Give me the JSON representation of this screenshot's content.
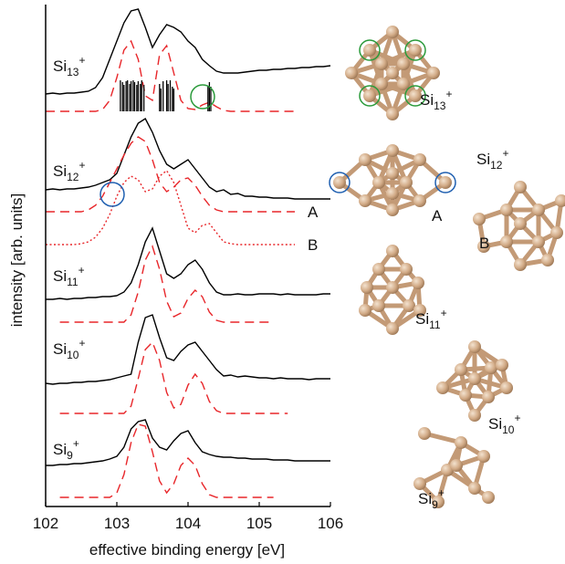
{
  "chart_data": {
    "type": "line",
    "xlabel": "effective binding energy [eV]",
    "ylabel": "intensity [arb. units]",
    "xlim": [
      102,
      106
    ],
    "xticks": [
      102,
      103,
      104,
      105,
      106
    ],
    "ylim": [
      0,
      550
    ],
    "x": [
      102.0,
      102.1,
      102.2,
      102.3,
      102.4,
      102.5,
      102.6,
      102.7,
      102.8,
      102.9,
      103.0,
      103.1,
      103.2,
      103.3,
      103.4,
      103.5,
      103.6,
      103.7,
      103.8,
      103.9,
      104.0,
      104.1,
      104.2,
      104.3,
      104.4,
      104.5,
      104.6,
      104.7,
      104.8,
      104.9,
      105.0,
      105.1,
      105.2,
      105.3,
      105.4,
      105.5,
      105.6,
      105.7,
      105.8,
      105.9,
      106.0
    ],
    "trace_labels": [
      {
        "element": "Si",
        "size": "13",
        "charge": "+"
      },
      {
        "element": "Si",
        "size": "12",
        "charge": "+"
      },
      {
        "element": "Si",
        "size": "11",
        "charge": "+"
      },
      {
        "element": "Si",
        "size": "10",
        "charge": "+"
      },
      {
        "element": "Si",
        "size": "9",
        "charge": "+"
      }
    ],
    "series": [
      {
        "color": "#000000",
        "style": "solid",
        "values": [
          452,
          453,
          452,
          453,
          453,
          454,
          455,
          459,
          470,
          490,
          510,
          530,
          543,
          545,
          525,
          503,
          517,
          528,
          525,
          520,
          510,
          503,
          490,
          483,
          477,
          475,
          475,
          475,
          476,
          477,
          478,
          478,
          479,
          479,
          480,
          480,
          481,
          481,
          482,
          482,
          483
        ]
      },
      {
        "color": "#e8262a",
        "style": "dashed",
        "values": [
          433,
          433,
          433,
          433,
          433,
          433,
          433,
          433,
          435,
          445,
          470,
          500,
          510,
          490,
          450,
          445,
          495,
          505,
          475,
          445,
          436,
          435,
          440,
          443,
          438,
          434,
          433,
          433,
          433,
          433,
          433,
          433,
          433,
          433,
          433,
          433,
          null,
          null,
          null,
          null,
          null
        ]
      },
      {
        "color": "#000000",
        "style": "solid",
        "values": [
          347,
          348,
          347,
          348,
          348,
          349,
          350,
          352,
          355,
          358,
          365,
          385,
          405,
          420,
          425,
          410,
          390,
          375,
          370,
          375,
          380,
          370,
          360,
          350,
          345,
          347,
          342,
          343,
          340,
          340,
          339,
          339,
          338,
          338,
          338,
          337,
          337,
          337,
          337,
          337,
          337
        ]
      },
      {
        "name": "A",
        "color": "#e8262a",
        "style": "dashed",
        "values": [
          323,
          323,
          323,
          323,
          323,
          323,
          325,
          330,
          340,
          355,
          370,
          385,
          398,
          405,
          400,
          380,
          355,
          345,
          350,
          358,
          360,
          352,
          340,
          330,
          325,
          323,
          323,
          323,
          323,
          323,
          323,
          323,
          323,
          323,
          323,
          323,
          null,
          null,
          null,
          null,
          null
        ]
      },
      {
        "name": "B",
        "color": "#e8262a",
        "style": "dotted",
        "values": [
          287,
          287,
          287,
          287,
          287,
          288,
          290,
          295,
          305,
          320,
          340,
          355,
          362,
          358,
          345,
          348,
          362,
          368,
          355,
          330,
          305,
          300,
          308,
          310,
          300,
          290,
          288,
          287,
          287,
          287,
          287,
          287,
          287,
          287,
          287,
          287,
          null,
          null,
          null,
          null,
          null
        ]
      },
      {
        "color": "#000000",
        "style": "solid",
        "values": [
          227,
          227,
          228,
          227,
          228,
          228,
          229,
          229,
          230,
          230,
          231,
          235,
          245,
          265,
          290,
          305,
          280,
          255,
          250,
          255,
          265,
          270,
          260,
          245,
          235,
          232,
          232,
          233,
          232,
          232,
          233,
          233,
          233,
          232,
          233,
          232,
          232,
          232,
          232,
          233,
          233
        ]
      },
      {
        "color": "#e8262a",
        "style": "dashed",
        "values": [
          null,
          null,
          202,
          202,
          202,
          202,
          202,
          202,
          202,
          202,
          202,
          202,
          210,
          235,
          270,
          285,
          260,
          225,
          208,
          212,
          228,
          237,
          230,
          213,
          204,
          202,
          202,
          202,
          202,
          202,
          202,
          202,
          202,
          null,
          null,
          null,
          null,
          null,
          null,
          null,
          null
        ]
      },
      {
        "color": "#000000",
        "style": "solid",
        "values": [
          135,
          134,
          135,
          135,
          136,
          136,
          137,
          137,
          138,
          139,
          141,
          143,
          145,
          180,
          207,
          210,
          185,
          163,
          160,
          170,
          177,
          180,
          170,
          160,
          150,
          143,
          144,
          142,
          143,
          142,
          141,
          141,
          140,
          141,
          140,
          140,
          140,
          139,
          140,
          140,
          140
        ]
      },
      {
        "color": "#e8262a",
        "style": "dashed",
        "values": [
          null,
          null,
          102,
          102,
          102,
          102,
          102,
          102,
          102,
          102,
          102,
          102,
          110,
          140,
          172,
          180,
          160,
          125,
          108,
          112,
          133,
          145,
          135,
          115,
          105,
          102,
          102,
          102,
          102,
          102,
          102,
          102,
          102,
          102,
          102,
          null,
          null,
          null,
          null,
          null,
          null
        ]
      },
      {
        "color": "#000000",
        "style": "solid",
        "values": [
          45,
          45,
          46,
          46,
          47,
          47,
          48,
          49,
          50,
          52,
          55,
          65,
          85,
          93,
          95,
          75,
          65,
          62,
          72,
          80,
          83,
          70,
          60,
          57,
          55,
          54,
          54,
          53,
          53,
          52,
          52,
          52,
          51,
          51,
          51,
          50,
          50,
          50,
          50,
          50,
          50
        ]
      },
      {
        "color": "#e8262a",
        "style": "dashed",
        "values": [
          null,
          null,
          10,
          10,
          10,
          10,
          10,
          10,
          10,
          10,
          15,
          35,
          70,
          90,
          88,
          60,
          28,
          15,
          25,
          45,
          53,
          45,
          25,
          13,
          10,
          10,
          10,
          10,
          10,
          10,
          10,
          10,
          10,
          null,
          null,
          null,
          null,
          null,
          null,
          null,
          null
        ]
      }
    ],
    "sticks": {
      "color": "#000000",
      "base": 433,
      "x": [
        103.05,
        103.08,
        103.1,
        103.13,
        103.15,
        103.18,
        103.2,
        103.23,
        103.25,
        103.28,
        103.3,
        103.33,
        103.35,
        103.38,
        103.6,
        103.62,
        103.65,
        103.7,
        103.72,
        103.75,
        103.78,
        103.8,
        104.28,
        104.3,
        104.32
      ],
      "values": [
        467,
        465,
        462,
        466,
        467,
        463,
        466,
        467,
        465,
        462,
        466,
        463,
        467,
        462,
        463,
        458,
        466,
        467,
        463,
        467,
        460,
        458,
        461,
        465,
        460
      ]
    }
  }
}
